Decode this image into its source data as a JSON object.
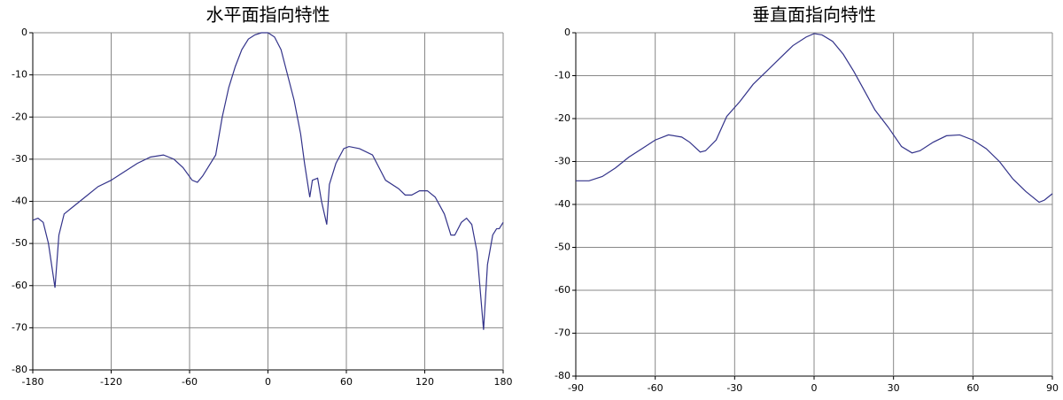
{
  "chart_data": [
    {
      "type": "line",
      "title": "水平面指向特性",
      "color": "#33338a",
      "grid": true,
      "xlim": [
        -180,
        180
      ],
      "ylim": [
        -80,
        0
      ],
      "xticks": [
        -180,
        -120,
        -60,
        0,
        60,
        120,
        180
      ],
      "yticks": [
        -80,
        -70,
        -60,
        -50,
        -40,
        -30,
        -20,
        -10,
        0
      ],
      "x": [
        -180,
        -176,
        -172,
        -168,
        -163,
        -160,
        -156,
        -150,
        -140,
        -130,
        -120,
        -110,
        -100,
        -90,
        -80,
        -72,
        -65,
        -58,
        -54,
        -50,
        -46,
        -40,
        -35,
        -30,
        -25,
        -20,
        -15,
        -10,
        -5,
        0,
        5,
        10,
        15,
        20,
        25,
        28,
        32,
        34,
        38,
        41,
        45,
        47,
        52,
        58,
        62,
        70,
        80,
        85,
        90,
        100,
        105,
        110,
        116,
        122,
        128,
        135,
        140,
        143,
        148,
        152,
        156,
        160,
        165,
        168,
        172,
        175,
        177,
        180
      ],
      "values": [
        -44.5,
        -44,
        -45,
        -50,
        -60.5,
        -48,
        -43,
        -41.5,
        -39,
        -36.5,
        -35,
        -33,
        -31,
        -29.5,
        -29,
        -30,
        -32,
        -35,
        -35.5,
        -34,
        -32,
        -29,
        -20,
        -13,
        -8,
        -4,
        -1.5,
        -0.5,
        0,
        0,
        -1,
        -4,
        -10,
        -16,
        -24,
        -31,
        -39,
        -35,
        -34.5,
        -40,
        -45.5,
        -36,
        -31,
        -27.5,
        -27,
        -27.5,
        -29,
        -32,
        -35,
        -37,
        -38.5,
        -38.5,
        -37.5,
        -37.5,
        -39,
        -43,
        -48,
        -48,
        -45,
        -44,
        -45.5,
        -52,
        -70.5,
        -55,
        -48,
        -46.5,
        -46.5,
        -45
      ]
    },
    {
      "type": "line",
      "title": "垂直面指向特性",
      "color": "#33338a",
      "grid": true,
      "xlim": [
        -90,
        90
      ],
      "ylim": [
        -80,
        0
      ],
      "xticks": [
        -90,
        -60,
        -30,
        0,
        30,
        60,
        90
      ],
      "yticks": [
        -80,
        -70,
        -60,
        -50,
        -40,
        -30,
        -20,
        -10,
        0
      ],
      "x": [
        -90,
        -85,
        -80,
        -75,
        -70,
        -65,
        -60,
        -55,
        -50,
        -47,
        -43,
        -41,
        -37,
        -33,
        -28,
        -23,
        -18,
        -13,
        -8,
        -3,
        0,
        3,
        7,
        11,
        15,
        19,
        23,
        28,
        33,
        37,
        40,
        45,
        50,
        55,
        60,
        65,
        70,
        75,
        80,
        85,
        87,
        90
      ],
      "values": [
        -34.5,
        -34.5,
        -33.5,
        -31.5,
        -29,
        -27,
        -25,
        -23.8,
        -24.3,
        -25.5,
        -27.8,
        -27.5,
        -25,
        -19.5,
        -16,
        -12,
        -9,
        -6,
        -3,
        -1,
        -0.2,
        -0.5,
        -2,
        -5,
        -9,
        -13.5,
        -18,
        -22,
        -26.5,
        -28,
        -27.5,
        -25.5,
        -24,
        -23.8,
        -25,
        -27,
        -30,
        -34,
        -37,
        -39.5,
        -39,
        -37.5
      ]
    }
  ]
}
